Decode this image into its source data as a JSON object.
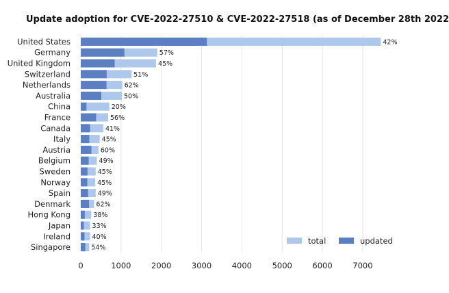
{
  "chart_data": {
    "type": "bar",
    "orientation": "horizontal",
    "stacking": "overlaid",
    "title": "Update adoption for CVE-2022-27510 & CVE-2022-27518 (as of December 28th 2022)",
    "xlabel": "",
    "ylabel": "",
    "xlim": [
      0,
      7800
    ],
    "x_ticks": [
      "0",
      "1000",
      "2000",
      "3000",
      "4000",
      "5000",
      "6000",
      "7000"
    ],
    "x_tick_values": [
      0,
      1000,
      2000,
      3000,
      4000,
      5000,
      6000,
      7000
    ],
    "grid": true,
    "legend_position": "bottom-right",
    "categories": [
      "United States",
      "Germany",
      "United Kingdom",
      "Switzerland",
      "Netherlands",
      "Australia",
      "China",
      "France",
      "Canada",
      "Italy",
      "Austria",
      "Belgium",
      "Sweden",
      "Norway",
      "Spain",
      "Denmark",
      "Hong Kong",
      "Japan",
      "Ireland",
      "Singapore"
    ],
    "series": [
      {
        "name": "total",
        "color": "#adc8eb",
        "values": [
          7450,
          1900,
          1870,
          1260,
          1030,
          1020,
          710,
          680,
          560,
          470,
          440,
          400,
          370,
          360,
          370,
          330,
          260,
          230,
          230,
          210
        ]
      },
      {
        "name": "updated",
        "color": "#5b7fc0",
        "values": [
          3130,
          1083,
          842,
          643,
          639,
          510,
          142,
          381,
          230,
          212,
          264,
          196,
          167,
          162,
          181,
          205,
          99,
          76,
          92,
          113
        ]
      }
    ],
    "percent_labels": [
      "42%",
      "57%",
      "45%",
      "51%",
      "62%",
      "50%",
      "20%",
      "56%",
      "41%",
      "45%",
      "60%",
      "49%",
      "45%",
      "45%",
      "49%",
      "62%",
      "38%",
      "33%",
      "40%",
      "54%"
    ]
  }
}
